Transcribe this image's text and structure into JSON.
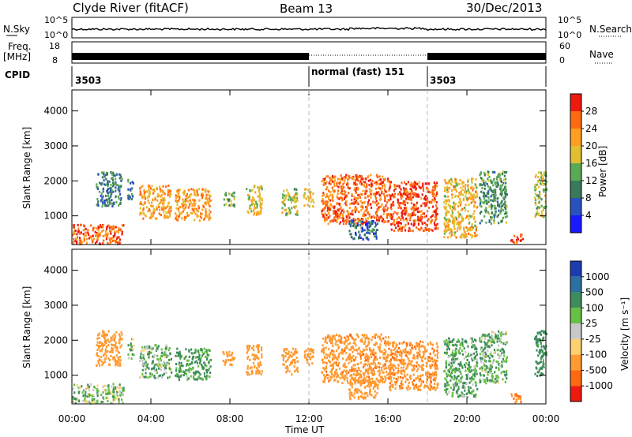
{
  "header": {
    "title": "Clyde River (fitACF)",
    "beam": "Beam 13",
    "date": "30/Dec/2013"
  },
  "strips": {
    "nsky_label": "N.Sky",
    "nsearch_label": "N.Search",
    "nsky_ticks": [
      "10^5",
      "10^0"
    ],
    "nsearch_ticks": [
      "10^5",
      "10^0"
    ],
    "freq_label_1": "Freq.",
    "freq_label_2": "[MHz]",
    "freq_ticks": [
      "18",
      "8"
    ],
    "nave_label": "Nave",
    "nave_ticks": [
      "60",
      "0"
    ],
    "cpid_label": "CPID",
    "cpid_segments": [
      {
        "start_h": 0,
        "end_h": 12,
        "label": "3503",
        "style": "solid"
      },
      {
        "start_h": 12,
        "end_h": 18,
        "label": "normal (fast) 151",
        "style": "dotted"
      },
      {
        "start_h": 18,
        "end_h": 24,
        "label": "3503",
        "style": "solid"
      }
    ]
  },
  "axes": {
    "xlabel": "Time UT",
    "ylabel": "Slant Range [km]",
    "x_ticks": [
      "00:00",
      "04:00",
      "08:00",
      "12:00",
      "16:00",
      "20:00",
      "00:00"
    ],
    "y_ticks": [
      "1000",
      "2000",
      "3000",
      "4000"
    ]
  },
  "colorbars": {
    "power": {
      "label": "Power [dB]",
      "ticks": [
        "4",
        "8",
        "12",
        "16",
        "20",
        "24",
        "28"
      ],
      "colors": [
        "#1a1aff",
        "#2a52be",
        "#3a7a5a",
        "#5aaa55",
        "#e0c030",
        "#ff9e20",
        "#ff6a10",
        "#ee1a10"
      ]
    },
    "velocity": {
      "label": "Velocity [m s⁻¹]",
      "ticks": [
        "1000",
        "500",
        "100",
        "25",
        "-25",
        "-100",
        "-500",
        "-1000"
      ],
      "colors": [
        "#1c3db0",
        "#2a70a0",
        "#3e8c5c",
        "#66c043",
        "#c8c8c8",
        "#ffd070",
        "#ff9a30",
        "#ff6a10",
        "#ee1a10"
      ]
    }
  },
  "chart_data": {
    "type": "heatmap",
    "x_range_hours": [
      0,
      24
    ],
    "y_range_km": [
      180,
      4600
    ],
    "x_unit": "hours UT",
    "y_unit": "km",
    "power_scale_db": [
      0,
      32
    ],
    "velocity_scale_ms": [
      -1200,
      1200
    ],
    "power_clusters": [
      {
        "t0": 0.0,
        "t1": 2.6,
        "r0": 220,
        "r1": 780,
        "v": 26
      },
      {
        "t0": 1.2,
        "t1": 2.5,
        "r0": 1300,
        "r1": 2300,
        "v": 10
      },
      {
        "t0": 2.8,
        "t1": 3.1,
        "r0": 1500,
        "r1": 2100,
        "v": 9
      },
      {
        "t0": 3.4,
        "t1": 5.0,
        "r0": 950,
        "r1": 1900,
        "v": 22
      },
      {
        "t0": 5.2,
        "t1": 7.0,
        "r0": 900,
        "r1": 1800,
        "v": 22
      },
      {
        "t0": 7.6,
        "t1": 8.2,
        "r0": 1300,
        "r1": 1700,
        "v": 14
      },
      {
        "t0": 8.8,
        "t1": 9.6,
        "r0": 1050,
        "r1": 1900,
        "v": 18
      },
      {
        "t0": 10.6,
        "t1": 11.4,
        "r0": 1050,
        "r1": 1800,
        "v": 16
      },
      {
        "t0": 11.7,
        "t1": 12.2,
        "r0": 1300,
        "r1": 1800,
        "v": 20
      },
      {
        "t0": 12.6,
        "t1": 16.0,
        "r0": 800,
        "r1": 2200,
        "v": 26
      },
      {
        "t0": 14.0,
        "t1": 15.5,
        "r0": 350,
        "r1": 900,
        "v": 8
      },
      {
        "t0": 16.0,
        "t1": 18.5,
        "r0": 600,
        "r1": 2000,
        "v": 28
      },
      {
        "t0": 18.8,
        "t1": 20.5,
        "r0": 400,
        "r1": 2100,
        "v": 20
      },
      {
        "t0": 20.6,
        "t1": 22.0,
        "r0": 800,
        "r1": 2300,
        "v": 12
      },
      {
        "t0": 22.2,
        "t1": 22.8,
        "r0": 250,
        "r1": 500,
        "v": 28
      },
      {
        "t0": 23.4,
        "t1": 24.0,
        "r0": 1000,
        "r1": 2300,
        "v": 16
      }
    ],
    "velocity_clusters": [
      {
        "t0": 0.0,
        "t1": 2.6,
        "r0": 220,
        "r1": 780,
        "v": 50
      },
      {
        "t0": 1.2,
        "t1": 2.5,
        "r0": 1300,
        "r1": 2300,
        "v": -300
      },
      {
        "t0": 2.8,
        "t1": 3.1,
        "r0": 1500,
        "r1": 2100,
        "v": 60
      },
      {
        "t0": 3.4,
        "t1": 5.0,
        "r0": 950,
        "r1": 1900,
        "v": 80
      },
      {
        "t0": 5.2,
        "t1": 7.0,
        "r0": 900,
        "r1": 1800,
        "v": 150
      },
      {
        "t0": 7.6,
        "t1": 8.2,
        "r0": 1300,
        "r1": 1700,
        "v": -300
      },
      {
        "t0": 8.8,
        "t1": 9.6,
        "r0": 1050,
        "r1": 1900,
        "v": -350
      },
      {
        "t0": 10.6,
        "t1": 11.4,
        "r0": 1050,
        "r1": 1800,
        "v": -300
      },
      {
        "t0": 11.7,
        "t1": 12.2,
        "r0": 1300,
        "r1": 1800,
        "v": -320
      },
      {
        "t0": 12.6,
        "t1": 16.0,
        "r0": 800,
        "r1": 2200,
        "v": -400
      },
      {
        "t0": 14.0,
        "t1": 15.5,
        "r0": 350,
        "r1": 900,
        "v": -300
      },
      {
        "t0": 16.0,
        "t1": 18.5,
        "r0": 600,
        "r1": 2000,
        "v": -420
      },
      {
        "t0": 18.8,
        "t1": 20.5,
        "r0": 400,
        "r1": 2100,
        "v": 120
      },
      {
        "t0": 20.6,
        "t1": 22.0,
        "r0": 800,
        "r1": 2300,
        "v": 90
      },
      {
        "t0": 22.2,
        "t1": 22.8,
        "r0": 250,
        "r1": 500,
        "v": -500
      },
      {
        "t0": 23.4,
        "t1": 24.0,
        "r0": 1000,
        "r1": 2300,
        "v": 200
      }
    ]
  }
}
